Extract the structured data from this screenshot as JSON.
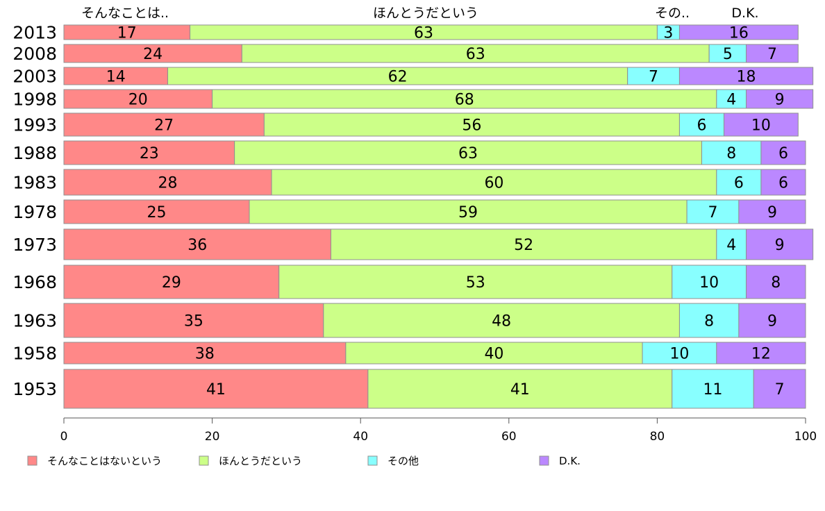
{
  "chart_data": {
    "type": "bar",
    "orientation": "horizontal",
    "stacked": true,
    "categories": [
      "2013",
      "2008",
      "2003",
      "1998",
      "1993",
      "1988",
      "1983",
      "1978",
      "1973",
      "1968",
      "1963",
      "1958",
      "1953"
    ],
    "series": [
      {
        "name": "そんなことはないという",
        "header": "そんなことは..",
        "color": "#ff8888",
        "values": [
          17,
          24,
          14,
          20,
          27,
          23,
          28,
          25,
          36,
          29,
          35,
          38,
          41
        ]
      },
      {
        "name": "ほんとうだという",
        "header": "ほんとうだという",
        "color": "#ccff88",
        "values": [
          63,
          63,
          62,
          68,
          56,
          63,
          60,
          59,
          52,
          53,
          48,
          40,
          41
        ]
      },
      {
        "name": "その他",
        "header": "その..",
        "color": "#88ffff",
        "values": [
          3,
          5,
          7,
          4,
          6,
          8,
          6,
          7,
          4,
          10,
          8,
          10,
          11
        ]
      },
      {
        "name": "D.K.",
        "header": "D.K.",
        "color": "#bb88ff",
        "values": [
          16,
          7,
          18,
          9,
          10,
          6,
          6,
          9,
          9,
          8,
          9,
          12,
          7
        ]
      }
    ],
    "xlim": [
      0,
      100
    ],
    "xticks": [
      0,
      20,
      40,
      60,
      80,
      100
    ],
    "xlabel": "",
    "ylabel": "",
    "title": "",
    "grid": false,
    "legend_position": "bottom-left"
  }
}
